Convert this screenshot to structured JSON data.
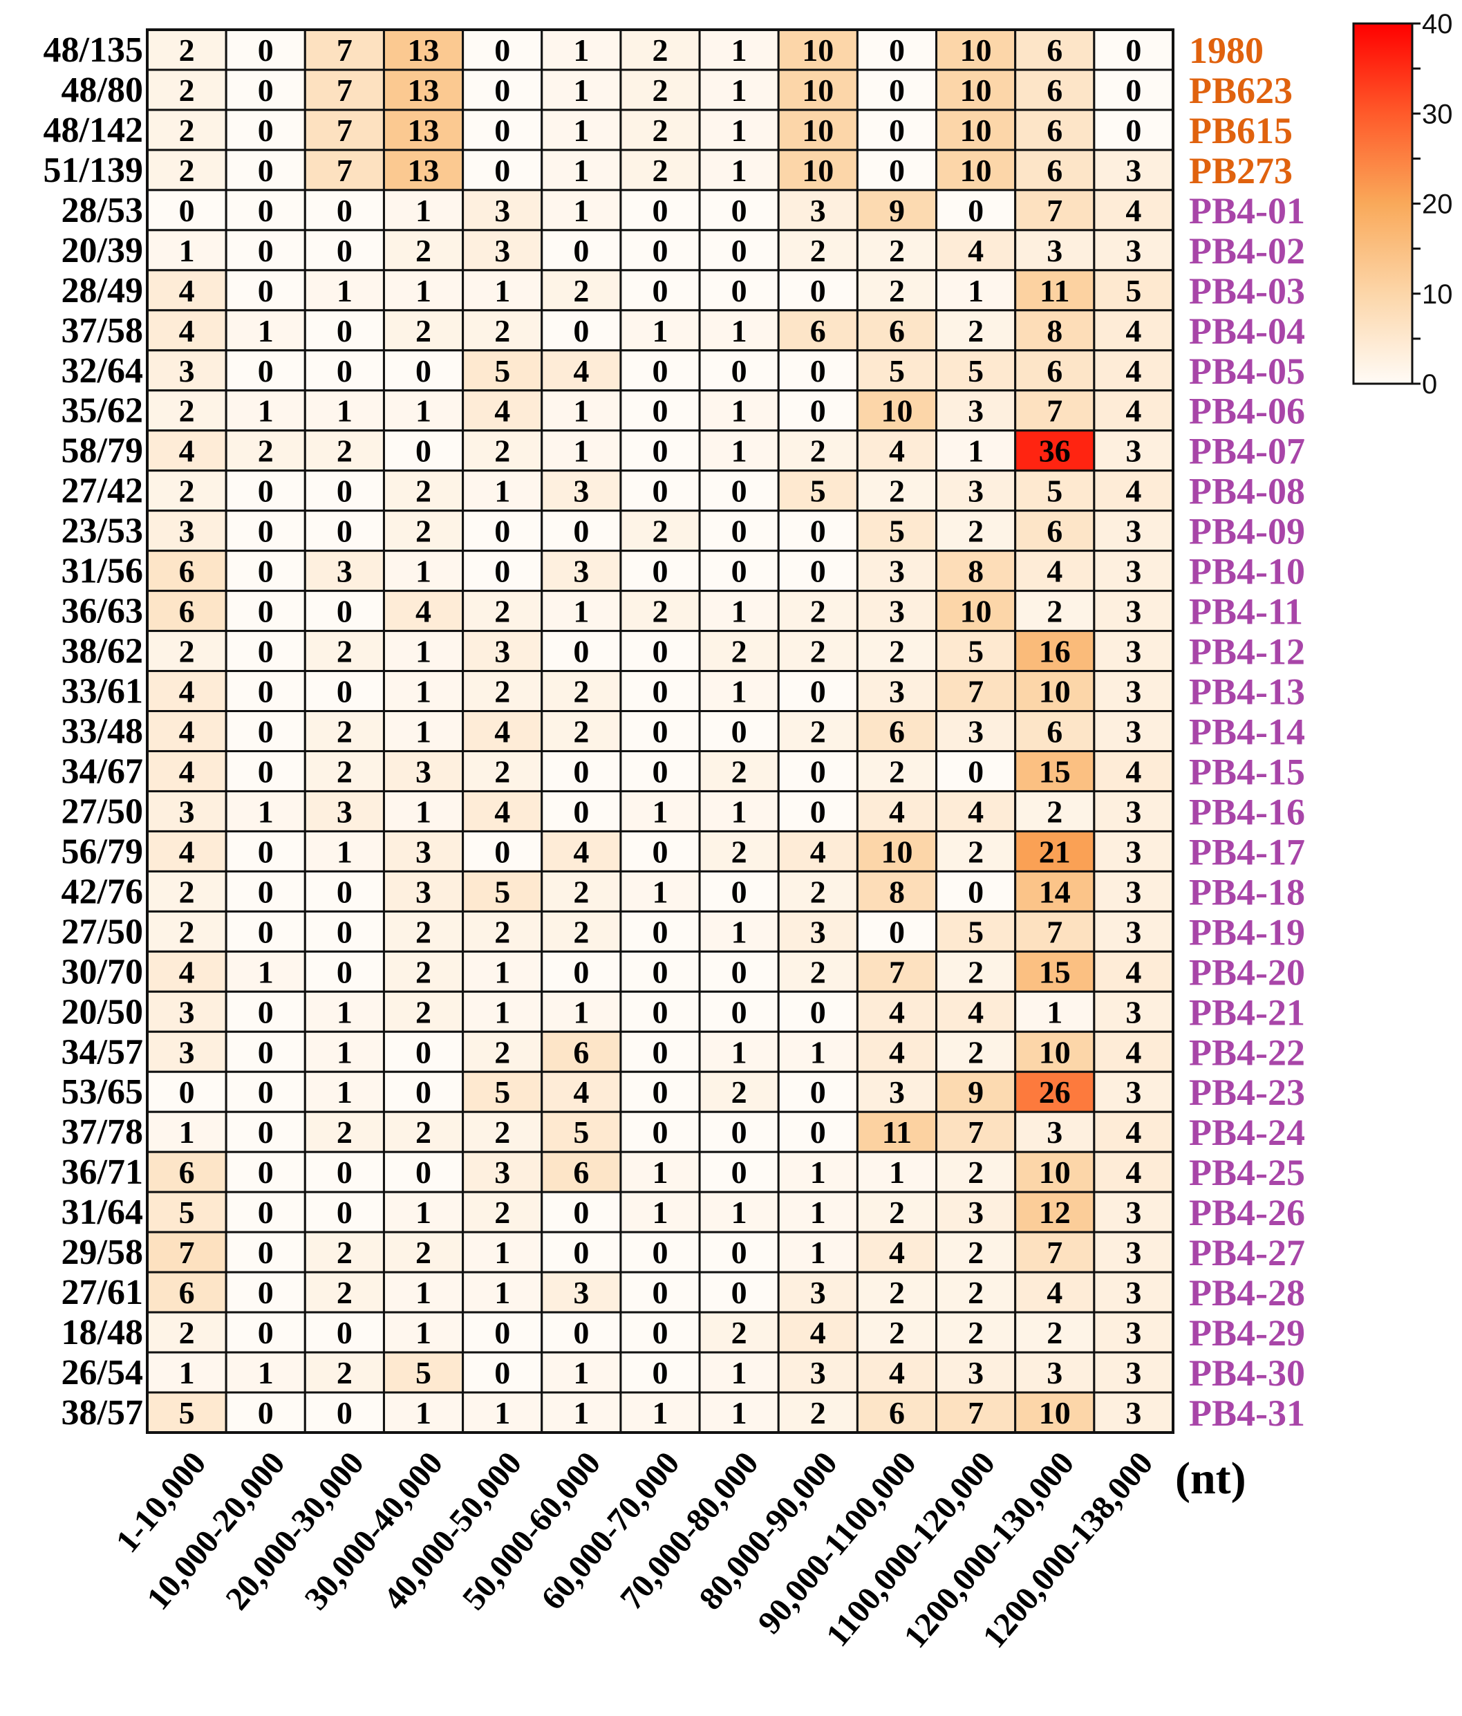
{
  "chart_data": {
    "type": "heatmap",
    "title": "",
    "xlabel_unit": "(nt)",
    "columns": [
      "1-10,000",
      "10,000-20,000",
      "20,000-30,000",
      "30,000-40,000",
      "40,000-50,000",
      "50,000-60,000",
      "60,000-70,000",
      "70,000-80,000",
      "80,000-90,000",
      "90,000-1100,000",
      "1100,000-120,000",
      "1200,000-130,000",
      "1200,000-138,000"
    ],
    "rows": [
      {
        "name": "1980",
        "ratio": "48/135",
        "group": "reference",
        "values": [
          2,
          0,
          7,
          13,
          0,
          1,
          2,
          1,
          10,
          0,
          10,
          6,
          0
        ]
      },
      {
        "name": "PB623",
        "ratio": "48/80",
        "group": "reference",
        "values": [
          2,
          0,
          7,
          13,
          0,
          1,
          2,
          1,
          10,
          0,
          10,
          6,
          0
        ]
      },
      {
        "name": "PB615",
        "ratio": "48/142",
        "group": "reference",
        "values": [
          2,
          0,
          7,
          13,
          0,
          1,
          2,
          1,
          10,
          0,
          10,
          6,
          0
        ]
      },
      {
        "name": "PB273",
        "ratio": "51/139",
        "group": "reference",
        "values": [
          2,
          0,
          7,
          13,
          0,
          1,
          2,
          1,
          10,
          0,
          10,
          6,
          3
        ]
      },
      {
        "name": "PB4-01",
        "ratio": "28/53",
        "group": "isolate",
        "values": [
          0,
          0,
          0,
          1,
          3,
          1,
          0,
          0,
          3,
          9,
          0,
          7,
          4
        ]
      },
      {
        "name": "PB4-02",
        "ratio": "20/39",
        "group": "isolate",
        "values": [
          1,
          0,
          0,
          2,
          3,
          0,
          0,
          0,
          2,
          2,
          4,
          3,
          3
        ]
      },
      {
        "name": "PB4-03",
        "ratio": "28/49",
        "group": "isolate",
        "values": [
          4,
          0,
          1,
          1,
          1,
          2,
          0,
          0,
          0,
          2,
          1,
          11,
          5
        ]
      },
      {
        "name": "PB4-04",
        "ratio": "37/58",
        "group": "isolate",
        "values": [
          4,
          1,
          0,
          2,
          2,
          0,
          1,
          1,
          6,
          6,
          2,
          8,
          4
        ]
      },
      {
        "name": "PB4-05",
        "ratio": "32/64",
        "group": "isolate",
        "values": [
          3,
          0,
          0,
          0,
          5,
          4,
          0,
          0,
          0,
          5,
          5,
          6,
          4
        ]
      },
      {
        "name": "PB4-06",
        "ratio": "35/62",
        "group": "isolate",
        "values": [
          2,
          1,
          1,
          1,
          4,
          1,
          0,
          1,
          0,
          10,
          3,
          7,
          4
        ]
      },
      {
        "name": "PB4-07",
        "ratio": "58/79",
        "group": "isolate",
        "values": [
          4,
          2,
          2,
          0,
          2,
          1,
          0,
          1,
          2,
          4,
          1,
          36,
          3
        ]
      },
      {
        "name": "PB4-08",
        "ratio": "27/42",
        "group": "isolate",
        "values": [
          2,
          0,
          0,
          2,
          1,
          3,
          0,
          0,
          5,
          2,
          3,
          5,
          4
        ]
      },
      {
        "name": "PB4-09",
        "ratio": "23/53",
        "group": "isolate",
        "values": [
          3,
          0,
          0,
          2,
          0,
          0,
          2,
          0,
          0,
          5,
          2,
          6,
          3
        ]
      },
      {
        "name": "PB4-10",
        "ratio": "31/56",
        "group": "isolate",
        "values": [
          6,
          0,
          3,
          1,
          0,
          3,
          0,
          0,
          0,
          3,
          8,
          4,
          3
        ]
      },
      {
        "name": "PB4-11",
        "ratio": "36/63",
        "group": "isolate",
        "values": [
          6,
          0,
          0,
          4,
          2,
          1,
          2,
          1,
          2,
          3,
          10,
          2,
          3
        ]
      },
      {
        "name": "PB4-12",
        "ratio": "38/62",
        "group": "isolate",
        "values": [
          2,
          0,
          2,
          1,
          3,
          0,
          0,
          2,
          2,
          2,
          5,
          16,
          3
        ]
      },
      {
        "name": "PB4-13",
        "ratio": "33/61",
        "group": "isolate",
        "values": [
          4,
          0,
          0,
          1,
          2,
          2,
          0,
          1,
          0,
          3,
          7,
          10,
          3
        ]
      },
      {
        "name": "PB4-14",
        "ratio": "33/48",
        "group": "isolate",
        "values": [
          4,
          0,
          2,
          1,
          4,
          2,
          0,
          0,
          2,
          6,
          3,
          6,
          3
        ]
      },
      {
        "name": "PB4-15",
        "ratio": "34/67",
        "group": "isolate",
        "values": [
          4,
          0,
          2,
          3,
          2,
          0,
          0,
          2,
          0,
          2,
          0,
          15,
          4
        ]
      },
      {
        "name": "PB4-16",
        "ratio": "27/50",
        "group": "isolate",
        "values": [
          3,
          1,
          3,
          1,
          4,
          0,
          1,
          1,
          0,
          4,
          4,
          2,
          3
        ]
      },
      {
        "name": "PB4-17",
        "ratio": "56/79",
        "group": "isolate",
        "values": [
          4,
          0,
          1,
          3,
          0,
          4,
          0,
          2,
          4,
          10,
          2,
          21,
          3
        ]
      },
      {
        "name": "PB4-18",
        "ratio": "42/76",
        "group": "isolate",
        "values": [
          2,
          0,
          0,
          3,
          5,
          2,
          1,
          0,
          2,
          8,
          0,
          14,
          3
        ]
      },
      {
        "name": "PB4-19",
        "ratio": "27/50",
        "group": "isolate",
        "values": [
          2,
          0,
          0,
          2,
          2,
          2,
          0,
          1,
          3,
          0,
          5,
          7,
          3
        ]
      },
      {
        "name": "PB4-20",
        "ratio": "30/70",
        "group": "isolate",
        "values": [
          4,
          1,
          0,
          2,
          1,
          0,
          0,
          0,
          2,
          7,
          2,
          15,
          4
        ]
      },
      {
        "name": "PB4-21",
        "ratio": "20/50",
        "group": "isolate",
        "values": [
          3,
          0,
          1,
          2,
          1,
          1,
          0,
          0,
          0,
          4,
          4,
          1,
          3
        ]
      },
      {
        "name": "PB4-22",
        "ratio": "34/57",
        "group": "isolate",
        "values": [
          3,
          0,
          1,
          0,
          2,
          6,
          0,
          1,
          1,
          4,
          2,
          10,
          4
        ]
      },
      {
        "name": "PB4-23",
        "ratio": "53/65",
        "group": "isolate",
        "values": [
          0,
          0,
          1,
          0,
          5,
          4,
          0,
          2,
          0,
          3,
          9,
          26,
          3
        ]
      },
      {
        "name": "PB4-24",
        "ratio": "37/78",
        "group": "isolate",
        "values": [
          1,
          0,
          2,
          2,
          2,
          5,
          0,
          0,
          0,
          11,
          7,
          3,
          4
        ]
      },
      {
        "name": "PB4-25",
        "ratio": "36/71",
        "group": "isolate",
        "values": [
          6,
          0,
          0,
          0,
          3,
          6,
          1,
          0,
          1,
          1,
          2,
          10,
          4
        ]
      },
      {
        "name": "PB4-26",
        "ratio": "31/64",
        "group": "isolate",
        "values": [
          5,
          0,
          0,
          1,
          2,
          0,
          1,
          1,
          1,
          2,
          3,
          12,
          3
        ]
      },
      {
        "name": "PB4-27",
        "ratio": "29/58",
        "group": "isolate",
        "values": [
          7,
          0,
          2,
          2,
          1,
          0,
          0,
          0,
          1,
          4,
          2,
          7,
          3
        ]
      },
      {
        "name": "PB4-28",
        "ratio": "27/61",
        "group": "isolate",
        "values": [
          6,
          0,
          2,
          1,
          1,
          3,
          0,
          0,
          3,
          2,
          2,
          4,
          3
        ]
      },
      {
        "name": "PB4-29",
        "ratio": "18/48",
        "group": "isolate",
        "values": [
          2,
          0,
          0,
          1,
          0,
          0,
          0,
          2,
          4,
          2,
          2,
          2,
          3
        ]
      },
      {
        "name": "PB4-30",
        "ratio": "26/54",
        "group": "isolate",
        "values": [
          1,
          1,
          2,
          5,
          0,
          1,
          0,
          1,
          3,
          4,
          3,
          3,
          3
        ]
      },
      {
        "name": "PB4-31",
        "ratio": "38/57",
        "group": "isolate",
        "values": [
          5,
          0,
          0,
          1,
          1,
          1,
          1,
          1,
          2,
          6,
          7,
          10,
          3
        ]
      }
    ],
    "colorbar": {
      "range": [
        0,
        40
      ],
      "ticks": [
        0,
        10,
        20,
        30,
        40
      ],
      "ticks_labels": [
        "0",
        "10",
        "20",
        "30",
        "40"
      ],
      "stops": [
        {
          "v": 0,
          "c": "#fffbf6"
        },
        {
          "v": 10,
          "c": "#fcd6a9"
        },
        {
          "v": 20,
          "c": "#f9a95a"
        },
        {
          "v": 30,
          "c": "#ff5a2a"
        },
        {
          "v": 40,
          "c": "#ff0000"
        }
      ]
    },
    "colors": {
      "reference": "#e0620e",
      "isolate": "#a845a8"
    }
  }
}
